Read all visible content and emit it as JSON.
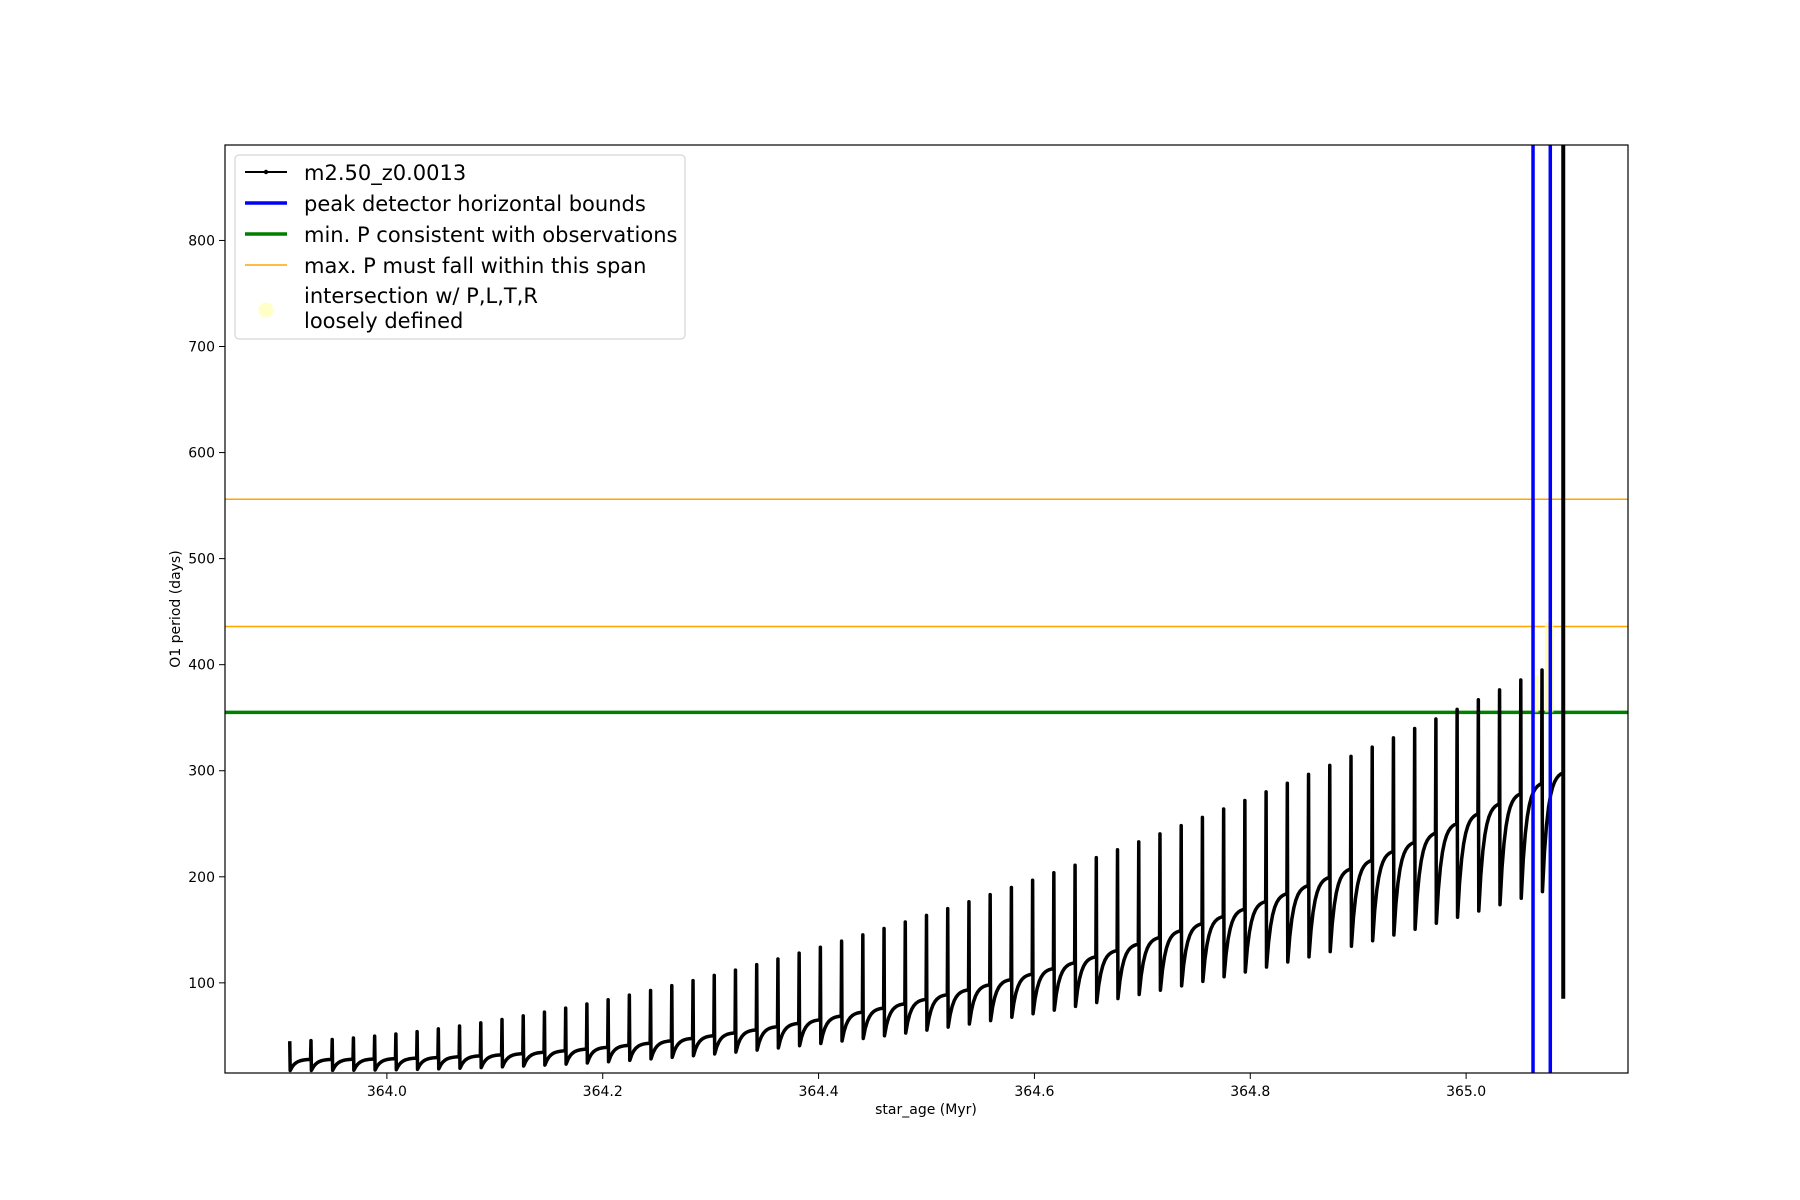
{
  "chart_data": {
    "type": "line",
    "title": "",
    "xlabel": "star_age (Myr)",
    "ylabel": "O1 period (days)",
    "xlim": [
      363.85,
      365.15
    ],
    "ylim": [
      15,
      890
    ],
    "xticks": [
      364.0,
      364.2,
      364.4,
      364.6,
      364.8,
      365.0
    ],
    "yticks": [
      100,
      200,
      300,
      400,
      500,
      600,
      700,
      800
    ],
    "xtick_labels": [
      "364.0",
      "364.2",
      "364.4",
      "364.6",
      "364.8",
      "365.0"
    ],
    "ytick_labels": [
      "100",
      "200",
      "300",
      "400",
      "500",
      "600",
      "700",
      "800"
    ],
    "grid": false,
    "legend_position": "top-left",
    "series": [
      {
        "name": "m2.50_z0.0013",
        "kind": "line-with-markers",
        "color": "#000000",
        "description_points": {
          "x_start": 363.91,
          "x_end": 365.09,
          "baseline_start": 28,
          "baseline_end": 300,
          "pulse_count": 60,
          "pulse_peak_start": 45,
          "pulse_peak_end": 395,
          "spike_x": 365.09,
          "spike_peak": 890,
          "spike_min": 85
        }
      },
      {
        "name": "peak detector horizontal bounds",
        "kind": "vline",
        "color": "#0000ff",
        "x": [
          365.062,
          365.078
        ]
      },
      {
        "name": "min. P consistent with observations",
        "kind": "hline",
        "color": "#007f00",
        "y": [
          355
        ]
      },
      {
        "name": "max. P must fall within this span",
        "kind": "hline",
        "color": "#ffa500",
        "y": [
          436,
          556
        ]
      },
      {
        "name": "intersection w/ P,L,T,R\nloosely defined",
        "kind": "scatter",
        "color": "#ffff99",
        "regions": [
          {
            "x": [
              365.061,
              365.067
            ],
            "y": [
              355,
              390
            ]
          },
          {
            "x": [
              365.073,
              365.081
            ],
            "y": [
              355,
              440
            ]
          }
        ]
      }
    ],
    "legend": [
      {
        "label": "m2.50_z0.0013",
        "style": "line-marker",
        "color": "#000000"
      },
      {
        "label": "peak detector horizontal bounds",
        "style": "thick-line",
        "color": "#0000ff"
      },
      {
        "label": "min. P consistent with observations",
        "style": "thick-line",
        "color": "#007f00"
      },
      {
        "label": "max. P must fall within this span",
        "style": "thin-line",
        "color": "#ffa500"
      },
      {
        "label": "intersection w/ P,L,T,R",
        "label2": "loosely defined",
        "style": "dot",
        "color": "#ffff99"
      }
    ]
  }
}
